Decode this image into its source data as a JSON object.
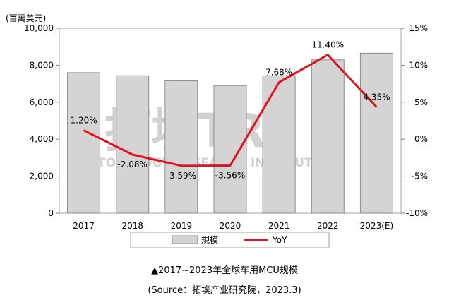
{
  "chart_data": {
    "type": "bar+line",
    "unit_label": "(百萬美元)",
    "categories": [
      "2017",
      "2018",
      "2019",
      "2020",
      "2021",
      "2022",
      "2023(E)"
    ],
    "series": [
      {
        "name": "規模",
        "type": "bar",
        "axis": "left",
        "color": "#d4d4d4",
        "values": [
          7600,
          7430,
          7160,
          6900,
          7430,
          8290,
          8650
        ]
      },
      {
        "name": "YoY",
        "type": "line",
        "axis": "right",
        "color": "#e0141e",
        "values": [
          1.2,
          -2.08,
          -3.59,
          -3.56,
          7.68,
          11.4,
          4.35
        ],
        "labels": [
          "1.20%",
          "-2.08%",
          "-3.59%",
          "-3.56%",
          "7.68%",
          "11.40%",
          "4.35%"
        ]
      }
    ],
    "y_left": {
      "ylim": [
        0,
        10000
      ],
      "ticks": [
        "0",
        "2,000",
        "4,000",
        "6,000",
        "8,000",
        "10,000"
      ]
    },
    "y_right": {
      "ylim": [
        -10,
        15
      ],
      "ticks": [
        "-10%",
        "-5%",
        "0%",
        "5%",
        "10%",
        "15%"
      ]
    },
    "legend": [
      "規模",
      "YoY"
    ],
    "legend_position": "bottom",
    "grid": false
  },
  "watermark": {
    "logo_text": "拓墣TRi",
    "subtext": "TOPOLOGY RESEARCH INSTITUTE"
  },
  "caption": {
    "title": "▲2017~2023年全球车用MCU规模",
    "source": "(Source：拓墣产业研究院，2023.3)"
  }
}
